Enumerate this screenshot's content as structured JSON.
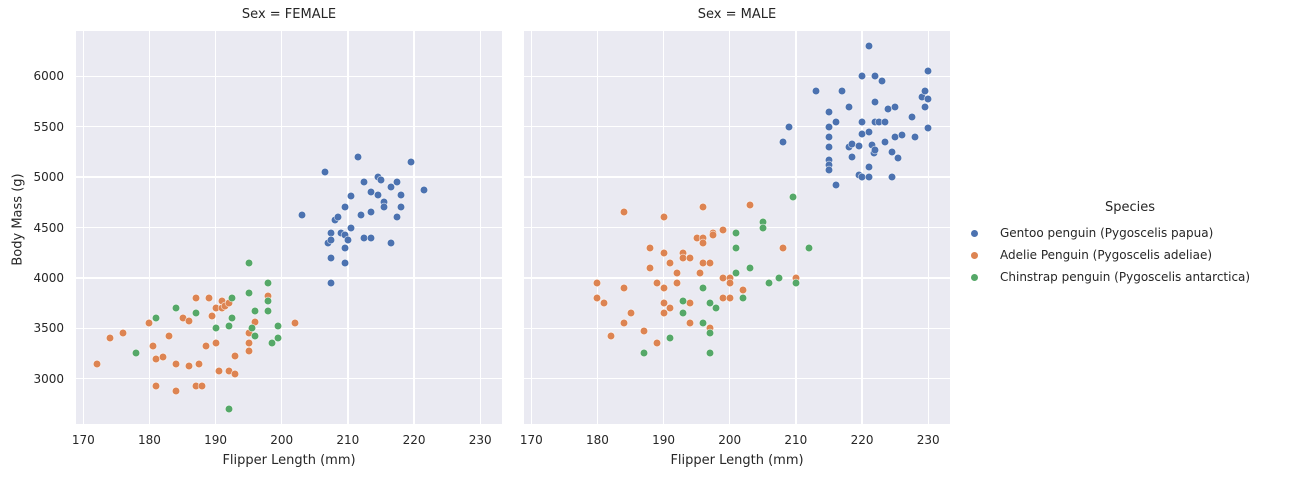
{
  "figure": {
    "background": "#FFFFFF",
    "panel_background": "#EAEAF2",
    "grid_color": "#FFFFFF",
    "text_color": "#262626"
  },
  "chart_data": {
    "type": "scatter",
    "title": "",
    "xlabel": "Flipper Length (mm)",
    "ylabel": "Body Mass (g)",
    "xlim": [
      168.9,
      233.3
    ],
    "ylim": [
      2550,
      6450
    ],
    "x_ticks": [
      170,
      180,
      190,
      200,
      210,
      220,
      230
    ],
    "y_ticks": [
      3000,
      3500,
      4000,
      4500,
      5000,
      5500,
      6000
    ],
    "grid": true,
    "legend_position": "right",
    "legend_title": "Species",
    "legend": {
      "title": "Species",
      "items": [
        {
          "label": "Gentoo penguin (Pygoscelis papua)",
          "color": "#4C72B0"
        },
        {
          "label": "Adelie Penguin (Pygoscelis adeliae)",
          "color": "#DD8452"
        },
        {
          "label": "Chinstrap penguin (Pygoscelis antarctica)",
          "color": "#55A868"
        }
      ]
    },
    "facets": [
      {
        "title": "Sex = FEMALE",
        "series": [
          {
            "name": "Gentoo penguin (Pygoscelis papua)",
            "color": "#4C72B0",
            "points": [
              [
                203,
                4625
              ],
              [
                206.5,
                5050
              ],
              [
                207,
                4350
              ],
              [
                207.5,
                4450
              ],
              [
                207.5,
                4375
              ],
              [
                207.5,
                4200
              ],
              [
                207.5,
                3950
              ],
              [
                208,
                4575
              ],
              [
                208.5,
                4600
              ],
              [
                209,
                4450
              ],
              [
                209.5,
                4700
              ],
              [
                209.5,
                4425
              ],
              [
                209.5,
                4300
              ],
              [
                209.5,
                4150
              ],
              [
                210,
                4380
              ],
              [
                210.5,
                4810
              ],
              [
                210.5,
                4500
              ],
              [
                211.5,
                5200
              ],
              [
                212,
                4625
              ],
              [
                212.5,
                4950
              ],
              [
                212.5,
                4400
              ],
              [
                213.5,
                4850
              ],
              [
                213.5,
                4650
              ],
              [
                213.5,
                4400
              ],
              [
                214.5,
                5000
              ],
              [
                214.5,
                4825
              ],
              [
                215,
                4975
              ],
              [
                215.5,
                4750
              ],
              [
                215.5,
                4700
              ],
              [
                216.5,
                4900
              ],
              [
                216.5,
                4350
              ],
              [
                217.5,
                4950
              ],
              [
                217.5,
                4600
              ],
              [
                218,
                4825
              ],
              [
                218,
                4700
              ],
              [
                219.5,
                5150
              ],
              [
                221.5,
                4875
              ]
            ]
          },
          {
            "name": "Adelie Penguin (Pygoscelis adeliae)",
            "color": "#DD8452",
            "points": [
              [
                172,
                3150
              ],
              [
                174,
                3400
              ],
              [
                176,
                3450
              ],
              [
                180,
                3550
              ],
              [
                180.5,
                3325
              ],
              [
                181,
                3200
              ],
              [
                181,
                2925
              ],
              [
                182,
                3215
              ],
              [
                183,
                3425
              ],
              [
                184,
                2875
              ],
              [
                184,
                3150
              ],
              [
                185,
                3600
              ],
              [
                186,
                3575
              ],
              [
                186,
                3125
              ],
              [
                187,
                3800
              ],
              [
                187,
                2925
              ],
              [
                187.5,
                3150
              ],
              [
                188,
                2925
              ],
              [
                188.5,
                3325
              ],
              [
                189,
                3800
              ],
              [
                189.5,
                3625
              ],
              [
                190,
                3700
              ],
              [
                190,
                3350
              ],
              [
                190.5,
                3075
              ],
              [
                191,
                3700
              ],
              [
                191,
                3775
              ],
              [
                191.5,
                3725
              ],
              [
                192,
                3750
              ],
              [
                192,
                3075
              ],
              [
                193,
                3225
              ],
              [
                193,
                3050
              ],
              [
                195,
                3450
              ],
              [
                195,
                3350
              ],
              [
                195,
                3275
              ],
              [
                196,
                3560
              ],
              [
                198,
                3825
              ],
              [
                202,
                3550
              ]
            ]
          },
          {
            "name": "Chinstrap penguin (Pygoscelis antarctica)",
            "color": "#55A868",
            "points": [
              [
                178,
                3250
              ],
              [
                181,
                3600
              ],
              [
                184,
                3700
              ],
              [
                187,
                3650
              ],
              [
                190,
                3500
              ],
              [
                192,
                2700
              ],
              [
                192,
                3525
              ],
              [
                192.5,
                3600
              ],
              [
                192.5,
                3800
              ],
              [
                195,
                3850
              ],
              [
                195,
                4150
              ],
              [
                195.5,
                3500
              ],
              [
                196,
                3675
              ],
              [
                196,
                3425
              ],
              [
                198,
                3950
              ],
              [
                198,
                3775
              ],
              [
                198,
                3675
              ],
              [
                198.5,
                3350
              ],
              [
                199.5,
                3400
              ],
              [
                199.5,
                3525
              ]
            ]
          }
        ]
      },
      {
        "title": "Sex = MALE",
        "series": [
          {
            "name": "Gentoo penguin (Pygoscelis papua)",
            "color": "#4C72B0",
            "points": [
              [
                208,
                5350
              ],
              [
                209,
                5500
              ],
              [
                213,
                5850
              ],
              [
                215,
                5650
              ],
              [
                215,
                5500
              ],
              [
                215,
                5400
              ],
              [
                215,
                5300
              ],
              [
                215,
                5170
              ],
              [
                215,
                5120
              ],
              [
                215,
                5070
              ],
              [
                216,
                5550
              ],
              [
                216,
                4925
              ],
              [
                217,
                5850
              ],
              [
                218,
                5700
              ],
              [
                218,
                5300
              ],
              [
                218.5,
                5325
              ],
              [
                218.5,
                5200
              ],
              [
                219.5,
                5310
              ],
              [
                219.5,
                5025
              ],
              [
                220,
                6000
              ],
              [
                220,
                5550
              ],
              [
                220,
                5425
              ],
              [
                220,
                5000
              ],
              [
                221,
                6300
              ],
              [
                221,
                5450
              ],
              [
                221,
                5100
              ],
              [
                221,
                5000
              ],
              [
                221.5,
                5315
              ],
              [
                221.8,
                5235
              ],
              [
                222,
                6000
              ],
              [
                222,
                5750
              ],
              [
                222,
                5550
              ],
              [
                222,
                5270
              ],
              [
                222.5,
                5550
              ],
              [
                223,
                5950
              ],
              [
                223.5,
                5550
              ],
              [
                223.5,
                5350
              ],
              [
                224,
                5675
              ],
              [
                224.5,
                5250
              ],
              [
                224.5,
                5000
              ],
              [
                225,
                5700
              ],
              [
                225,
                5400
              ],
              [
                225.5,
                5190
              ],
              [
                226,
                5420
              ],
              [
                227.5,
                5600
              ],
              [
                228,
                5400
              ],
              [
                229,
                5800
              ],
              [
                229.5,
                5850
              ],
              [
                229.5,
                5700
              ],
              [
                230,
                6050
              ],
              [
                230,
                5775
              ],
              [
                230,
                5490
              ]
            ]
          },
          {
            "name": "Adelie Penguin (Pygoscelis adeliae)",
            "color": "#DD8452",
            "points": [
              [
                180,
                3950
              ],
              [
                180,
                3800
              ],
              [
                181,
                3750
              ],
              [
                182,
                3425
              ],
              [
                184,
                4650
              ],
              [
                184,
                3900
              ],
              [
                184,
                3550
              ],
              [
                185,
                3650
              ],
              [
                187,
                3475
              ],
              [
                188,
                4300
              ],
              [
                188,
                4100
              ],
              [
                189,
                3950
              ],
              [
                189,
                3350
              ],
              [
                190,
                4600
              ],
              [
                190,
                4250
              ],
              [
                190,
                3900
              ],
              [
                190,
                3750
              ],
              [
                190,
                3650
              ],
              [
                191,
                4150
              ],
              [
                191,
                3700
              ],
              [
                192,
                4050
              ],
              [
                192,
                3950
              ],
              [
                193,
                4250
              ],
              [
                193,
                4200
              ],
              [
                194,
                4200
              ],
              [
                194,
                3750
              ],
              [
                194,
                3550
              ],
              [
                195,
                4400
              ],
              [
                195.5,
                4050
              ],
              [
                196,
                4700
              ],
              [
                196,
                4400
              ],
              [
                196,
                4350
              ],
              [
                196,
                4150
              ],
              [
                197,
                4150
              ],
              [
                197,
                3500
              ],
              [
                197.5,
                4450
              ],
              [
                197.5,
                4425
              ],
              [
                199,
                4475
              ],
              [
                199,
                4000
              ],
              [
                199,
                3800
              ],
              [
                200,
                4000
              ],
              [
                200,
                3950
              ],
              [
                200,
                3800
              ],
              [
                202,
                3875
              ],
              [
                203,
                4725
              ],
              [
                208,
                4300
              ],
              [
                210,
                4000
              ]
            ]
          },
          {
            "name": "Chinstrap penguin (Pygoscelis antarctica)",
            "color": "#55A868",
            "points": [
              [
                187,
                3250
              ],
              [
                191,
                3400
              ],
              [
                193,
                3775
              ],
              [
                193,
                3650
              ],
              [
                196,
                3900
              ],
              [
                196,
                3550
              ],
              [
                197,
                3750
              ],
              [
                197,
                3450
              ],
              [
                197,
                3250
              ],
              [
                198,
                3700
              ],
              [
                201,
                4450
              ],
              [
                201,
                4300
              ],
              [
                201,
                4050
              ],
              [
                202,
                3800
              ],
              [
                203,
                4100
              ],
              [
                205,
                4550
              ],
              [
                205,
                4500
              ],
              [
                206,
                3950
              ],
              [
                207.5,
                4000
              ],
              [
                209.5,
                4800
              ],
              [
                210,
                3950
              ],
              [
                212,
                4300
              ]
            ]
          }
        ]
      }
    ]
  }
}
